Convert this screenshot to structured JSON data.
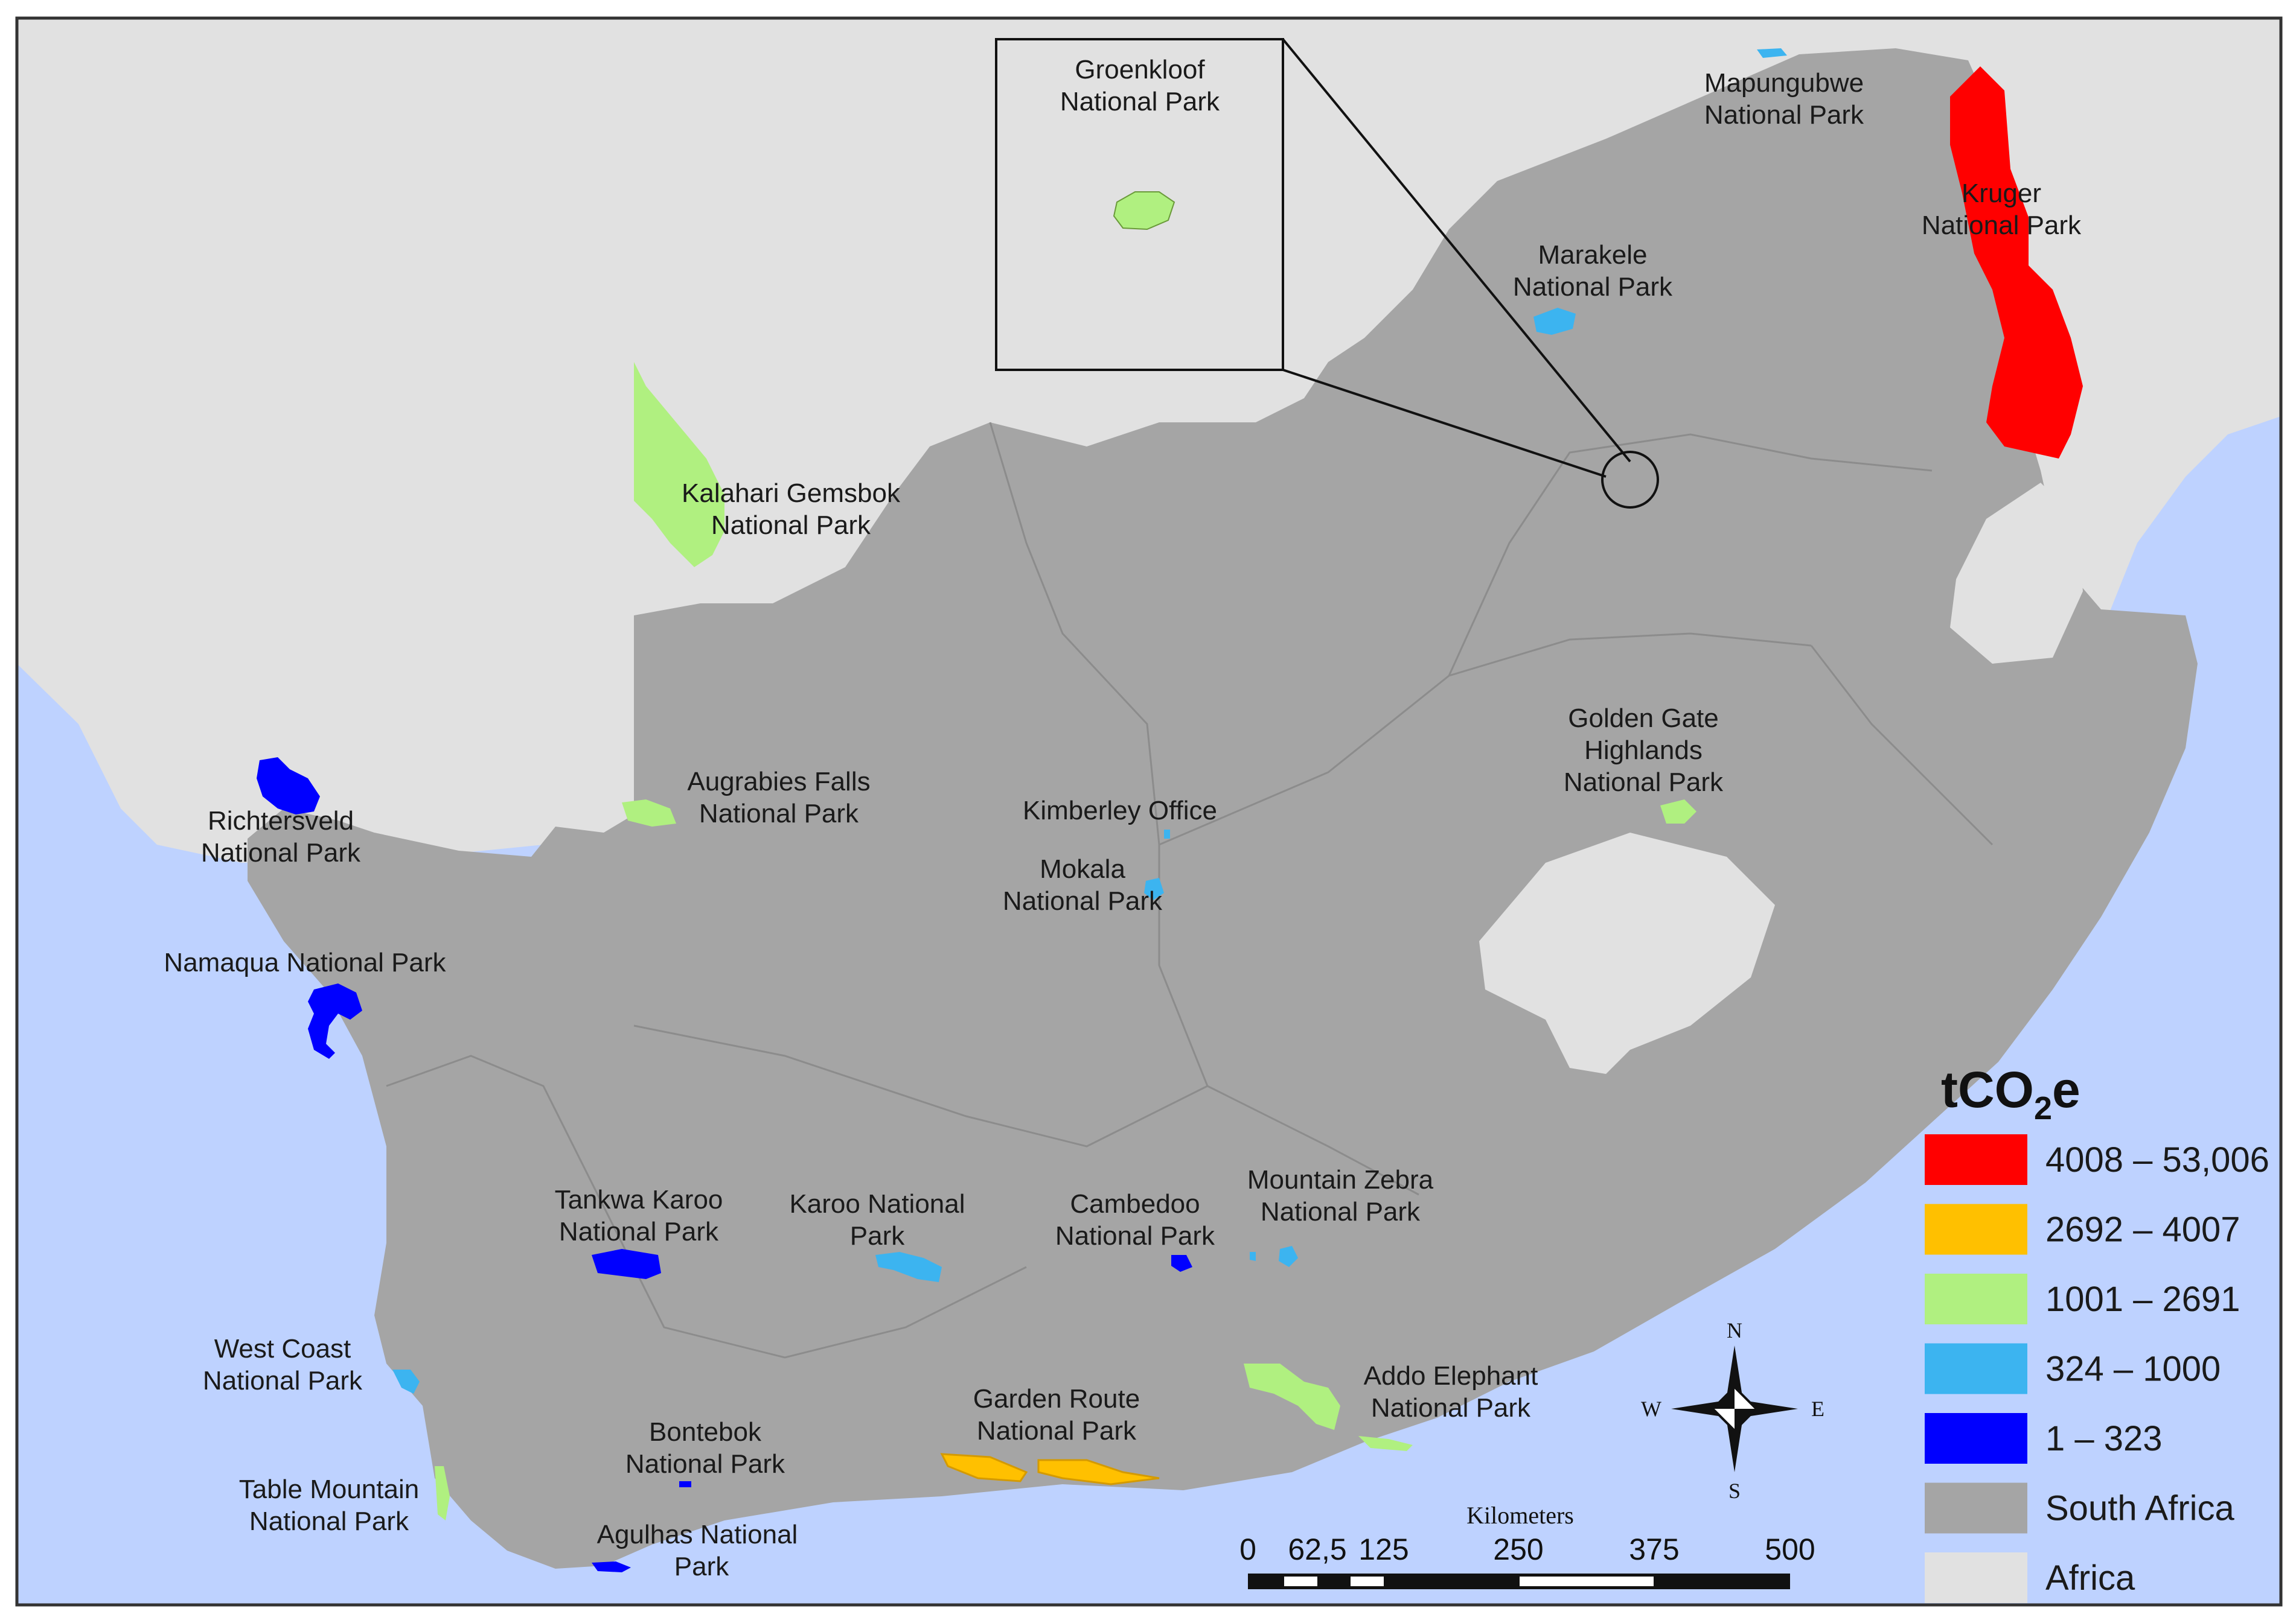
{
  "colors": {
    "ocean": "#bed2ff",
    "africa": "#e1e1e1",
    "south_africa": "#a5a5a5",
    "class1": "#ff0000",
    "class2": "#ffc000",
    "class3": "#b0f080",
    "class4": "#3cb4f0",
    "class5": "#0000ff"
  },
  "inset": {
    "title_line1": "Groenkloof",
    "title_line2": "National Park"
  },
  "parks": [
    {
      "id": "kruger",
      "line1": "Kruger",
      "line2": "National Park"
    },
    {
      "id": "mapungubwe",
      "line1": "Mapungubwe",
      "line2": "National Park"
    },
    {
      "id": "marakele",
      "line1": "Marakele",
      "line2": "National Park"
    },
    {
      "id": "kalahari",
      "line1": "Kalahari Gemsbok",
      "line2": "National Park"
    },
    {
      "id": "augrabies",
      "line1": "Augrabies Falls",
      "line2": "National Park"
    },
    {
      "id": "richtersveld",
      "line1": "Richtersveld",
      "line2": "National Park"
    },
    {
      "id": "namaqua",
      "line1": "Namaqua National Park",
      "line2": ""
    },
    {
      "id": "kimberley",
      "line1": "Kimberley Office",
      "line2": ""
    },
    {
      "id": "mokala",
      "line1": "Mokala",
      "line2": "National Park"
    },
    {
      "id": "golden_gate",
      "line1": "Golden Gate",
      "line2": "Highlands",
      "line3": "National Park"
    },
    {
      "id": "tankwa",
      "line1": "Tankwa Karoo",
      "line2": "National Park"
    },
    {
      "id": "karoo",
      "line1": "Karoo National",
      "line2": "Park"
    },
    {
      "id": "camdeboo",
      "line1": "Cambedoo",
      "line2": "National Park"
    },
    {
      "id": "mountain_zebra",
      "line1": "Mountain Zebra",
      "line2": "National Park"
    },
    {
      "id": "west_coast",
      "line1": "West Coast",
      "line2": "National Park"
    },
    {
      "id": "addo",
      "line1": "Addo Elephant",
      "line2": "National Park"
    },
    {
      "id": "garden_route",
      "line1": "Garden Route",
      "line2": "National Park"
    },
    {
      "id": "bontebok",
      "line1": "Bontebok",
      "line2": "National Park"
    },
    {
      "id": "table_mountain",
      "line1": "Table Mountain",
      "line2": "National Park"
    },
    {
      "id": "agulhas",
      "line1": "Agulhas National",
      "line2": "Park"
    }
  ],
  "legend": {
    "title_main": "tCO",
    "title_sub": "2",
    "title_end": "e",
    "items": [
      {
        "label": "4008 – 53,006",
        "color": "#ff0000"
      },
      {
        "label": "2692 – 4007",
        "color": "#ffc000"
      },
      {
        "label": "1001 – 2691",
        "color": "#b0f080"
      },
      {
        "label": "324 – 1000",
        "color": "#3cb4f0"
      },
      {
        "label": "1 – 323",
        "color": "#0000ff"
      },
      {
        "label": "South Africa",
        "color": "#a5a5a5"
      },
      {
        "label": "Africa",
        "color": "#e1e1e1"
      }
    ]
  },
  "scale_bar": {
    "unit": "Kilometers",
    "ticks": [
      "0",
      "62,5",
      "125",
      "250",
      "375",
      "500"
    ]
  },
  "compass": {
    "n": "N",
    "s": "S",
    "e": "E",
    "w": "W"
  }
}
